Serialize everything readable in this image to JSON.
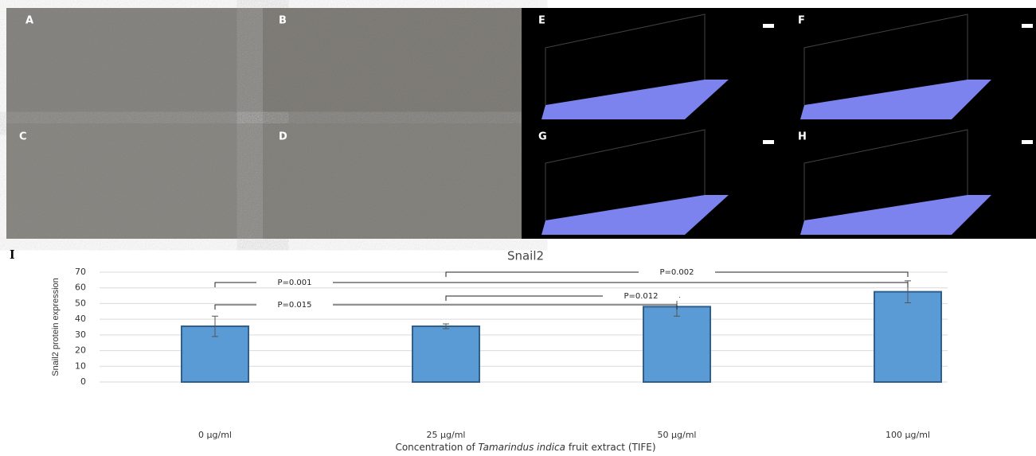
{
  "panels": {
    "labels": [
      "A",
      "B",
      "C",
      "D",
      "E",
      "F",
      "G",
      "H"
    ],
    "chart_label": "I"
  },
  "chart_data": {
    "type": "bar",
    "title": "Snail2",
    "categories": [
      "0 µg/ml",
      "25 µg/ml",
      "50 µg/ml",
      "100 µg/ml"
    ],
    "values": [
      35.5,
      35.5,
      48,
      57.5
    ],
    "errors": [
      6.5,
      1.5,
      6,
      7
    ],
    "color": "#5b9bd5",
    "ylim": [
      0,
      70
    ],
    "yticks": [
      0,
      10,
      20,
      30,
      40,
      50,
      60,
      70
    ],
    "grid": true,
    "y_label": "Snail2 protein expression",
    "x_label": {
      "before": "Concentration of ",
      "italic": "Tamarindus indica",
      "after": " fruit extract (TIFE)"
    },
    "brackets": [
      {
        "pair": [
          1,
          3
        ],
        "label": "P=0.002"
      },
      {
        "pair": [
          0,
          3
        ],
        "label": "P=0.001"
      },
      {
        "pair": [
          1,
          2
        ],
        "label": "P=0.012"
      },
      {
        "pair": [
          0,
          2
        ],
        "label": "P=0.015"
      }
    ]
  }
}
